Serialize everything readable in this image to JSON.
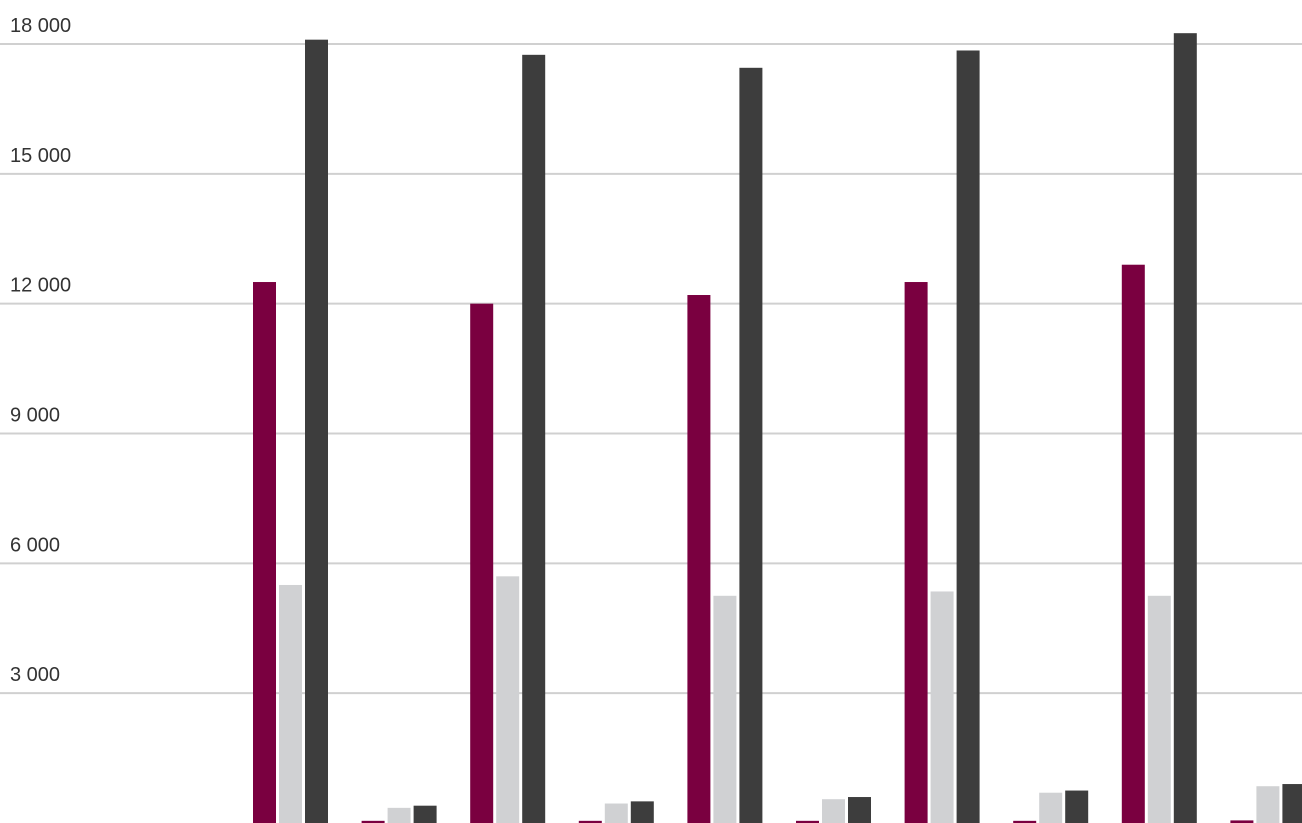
{
  "chart_data": {
    "type": "bar",
    "title": "",
    "xlabel": "",
    "ylabel": "",
    "ylim": [
      0,
      18000
    ],
    "yticks": [
      3000,
      6000,
      9000,
      12000,
      15000,
      18000
    ],
    "ytick_labels": [
      "3 000",
      "6 000",
      "9 000",
      "12 000",
      "15 000",
      "18 000"
    ],
    "grid": true,
    "legend": "none",
    "series_colors": [
      "#7a0040",
      "#d0d1d3",
      "#3d3d3d"
    ],
    "groups": [
      {
        "values": [
          12500,
          5500,
          18100
        ]
      },
      {
        "values": [
          50,
          350,
          400
        ]
      },
      {
        "values": [
          12000,
          5700,
          17750
        ]
      },
      {
        "values": [
          50,
          450,
          500
        ]
      },
      {
        "values": [
          12200,
          5250,
          17450
        ]
      },
      {
        "values": [
          50,
          550,
          600
        ]
      },
      {
        "values": [
          12500,
          5350,
          17850
        ]
      },
      {
        "values": [
          50,
          700,
          750
        ]
      },
      {
        "values": [
          12900,
          5250,
          18250
        ]
      },
      {
        "values": [
          60,
          850,
          900
        ]
      }
    ]
  }
}
